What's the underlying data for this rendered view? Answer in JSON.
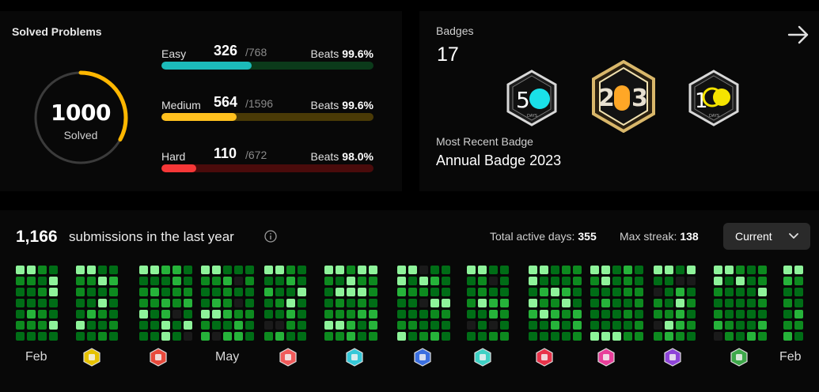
{
  "solved": {
    "title": "Solved Problems",
    "total": "1000",
    "total_label": "Solved",
    "difficulties": [
      {
        "name": "Easy",
        "solved": "326",
        "total": "/768",
        "beats_label": "Beats",
        "beats": "99.6%",
        "fraction": 0.424,
        "color": "#1cbaba",
        "track": "#0b3a1a"
      },
      {
        "name": "Medium",
        "solved": "564",
        "total": "/1596",
        "beats_label": "Beats",
        "beats": "99.6%",
        "fraction": 0.353,
        "color": "#ffc01e",
        "track": "#4a3a06"
      },
      {
        "name": "Hard",
        "solved": "110",
        "total": "/672",
        "beats_label": "Beats",
        "beats": "98.0%",
        "fraction": 0.164,
        "color": "#f63737",
        "track": "#4a0b0b"
      }
    ],
    "ring_fraction": 0.33,
    "ring_color": "#ffb700"
  },
  "badges": {
    "title": "Badges",
    "count": "17",
    "recent_label": "Most Recent Badge",
    "recent_name": "Annual Badge 2023",
    "items": [
      "50-days-badge",
      "annual-2023-badge",
      "100-days-badge"
    ],
    "arrow_icon": "arrow-right-icon"
  },
  "calendar": {
    "submissions": "1,166",
    "submissions_text": "submissions in the last year",
    "active_days_label": "Total active days:",
    "active_days": "355",
    "max_streak_label": "Max streak:",
    "max_streak": "138",
    "selector": "Current",
    "months": [
      {
        "label": "Feb",
        "type": "text"
      },
      {
        "label": "yellow",
        "type": "badge",
        "color": "#e6c200"
      },
      {
        "label": "red",
        "type": "badge",
        "color": "#e84a3c"
      },
      {
        "label": "May",
        "type": "text"
      },
      {
        "label": "red",
        "type": "badge",
        "color": "#f05a5a"
      },
      {
        "label": "cyan",
        "type": "badge",
        "color": "#35c8d8"
      },
      {
        "label": "blue",
        "type": "badge",
        "color": "#3b6fe0"
      },
      {
        "label": "teal",
        "type": "badge",
        "color": "#3fd1c5"
      },
      {
        "label": "red",
        "type": "badge",
        "color": "#e8334a"
      },
      {
        "label": "pink",
        "type": "badge",
        "color": "#e83e9a"
      },
      {
        "label": "purple",
        "type": "badge",
        "color": "#8e44d8"
      },
      {
        "label": "green",
        "type": "badge",
        "color": "#3ea84a"
      },
      {
        "label": "Feb",
        "type": "text"
      }
    ],
    "levels": [
      "#1a1a1a",
      "#006d16",
      "#0d8a1f",
      "#26b33a",
      "#8ef39a"
    ]
  }
}
